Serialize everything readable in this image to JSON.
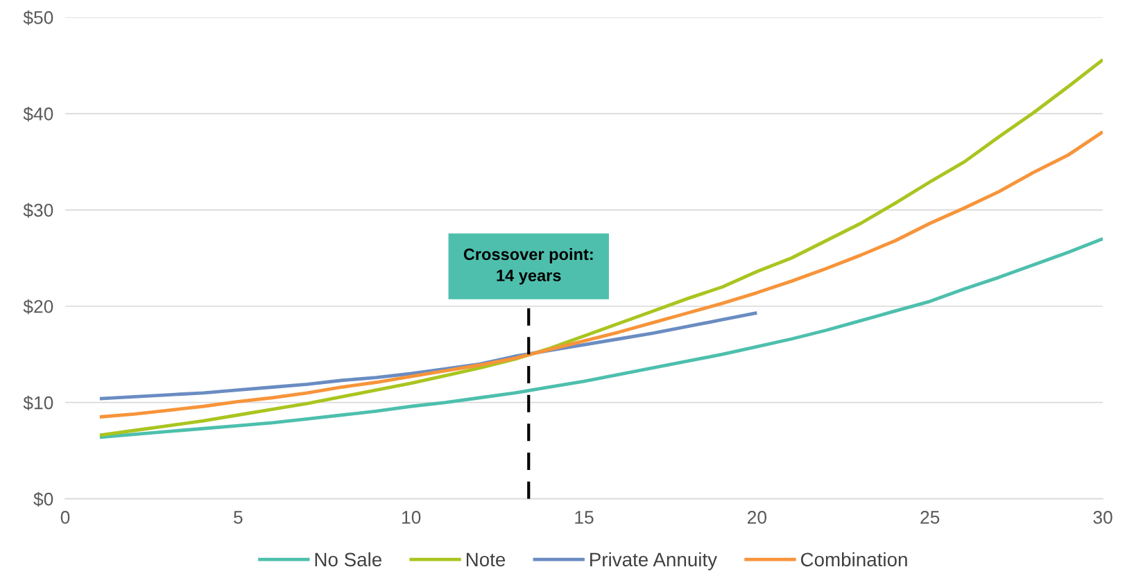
{
  "chart_data": {
    "type": "line",
    "x": [
      1,
      2,
      3,
      4,
      5,
      6,
      7,
      8,
      9,
      10,
      11,
      12,
      13,
      14,
      15,
      16,
      17,
      18,
      19,
      20,
      21,
      22,
      23,
      24,
      25,
      26,
      27,
      28,
      29,
      30
    ],
    "series": [
      {
        "name": "No Sale",
        "color": "#4dbfad",
        "values": [
          6.4,
          6.7,
          7.0,
          7.3,
          7.6,
          7.9,
          8.3,
          8.7,
          9.1,
          9.6,
          10.0,
          10.5,
          11.0,
          11.6,
          12.2,
          12.9,
          13.6,
          14.3,
          15.0,
          15.8,
          16.6,
          17.5,
          18.5,
          19.5,
          20.5,
          21.8,
          23.0,
          24.3,
          25.6,
          27.0
        ]
      },
      {
        "name": "Note",
        "color": "#a9c520",
        "values": [
          6.6,
          7.1,
          7.6,
          8.1,
          8.7,
          9.3,
          9.9,
          10.6,
          11.3,
          12.0,
          12.8,
          13.6,
          14.5,
          15.6,
          16.9,
          18.2,
          19.5,
          20.8,
          22.0,
          23.6,
          25.0,
          26.8,
          28.6,
          30.7,
          32.9,
          35.0,
          37.6,
          40.1,
          42.8,
          45.6
        ]
      },
      {
        "name": "Private Annuity",
        "color": "#6a8cc2",
        "x": [
          1,
          2,
          3,
          4,
          5,
          6,
          7,
          8,
          9,
          10,
          11,
          12,
          13,
          14,
          15,
          16,
          17,
          18,
          19,
          20
        ],
        "values": [
          10.4,
          10.6,
          10.8,
          11.0,
          11.3,
          11.6,
          11.9,
          12.3,
          12.6,
          13.0,
          13.5,
          14.0,
          14.8,
          15.4,
          16.0,
          16.6,
          17.2,
          17.9,
          18.6,
          19.3
        ]
      },
      {
        "name": "Combination",
        "color": "#f7943a",
        "values": [
          8.5,
          8.8,
          9.2,
          9.6,
          10.1,
          10.5,
          11.0,
          11.6,
          12.1,
          12.7,
          13.3,
          13.9,
          14.6,
          15.5,
          16.4,
          17.3,
          18.3,
          19.3,
          20.3,
          21.4,
          22.6,
          23.9,
          25.3,
          26.8,
          28.6,
          30.2,
          31.9,
          33.9,
          35.7,
          38.1
        ]
      }
    ],
    "xlim": [
      0,
      30
    ],
    "xticks": [
      0,
      5,
      10,
      15,
      20,
      25,
      30
    ],
    "ylim": [
      0,
      50
    ],
    "yticks": [
      {
        "value": 0,
        "label": "$0"
      },
      {
        "value": 10,
        "label": "$10"
      },
      {
        "value": 20,
        "label": "$20"
      },
      {
        "value": 30,
        "label": "$30"
      },
      {
        "value": 40,
        "label": "$40"
      },
      {
        "value": 50,
        "label": "$50"
      }
    ],
    "ref_lines": [
      {
        "axis": "x",
        "value": 13.4,
        "color": "#000000",
        "line_style": "dashed"
      }
    ],
    "annotations": [
      "Crossover point:\n14 years"
    ],
    "grid": "y",
    "legend": "bottom",
    "marker": "none",
    "line_style": "solid"
  }
}
